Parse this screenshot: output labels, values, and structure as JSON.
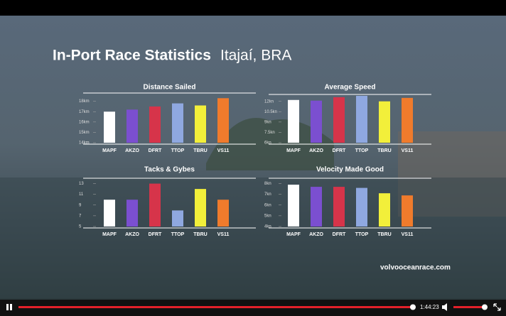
{
  "slide": {
    "title": "In-Port Race Statistics",
    "subtitle": "Itajaí, BRA",
    "logo": "volvooceanrace.com"
  },
  "player": {
    "time": "1:44:23"
  },
  "chart_data": [
    {
      "type": "bar",
      "title": "Distance Sailed",
      "categories": [
        "MAPF",
        "AKZO",
        "DFRT",
        "TTOP",
        "TBRU",
        "VS11"
      ],
      "values": [
        17.0,
        17.2,
        17.5,
        17.8,
        17.6,
        18.3
      ],
      "colors": [
        "#ffffff",
        "#7b4fd0",
        "#d6344a",
        "#8fa8e0",
        "#f2ef3a",
        "#f07b2c"
      ],
      "ylim": [
        14,
        18.8
      ],
      "yticks": [
        {
          "value": 14,
          "label": "14km"
        },
        {
          "value": 15,
          "label": "15km"
        },
        {
          "value": 16,
          "label": "16km"
        },
        {
          "value": 17,
          "label": "17km"
        },
        {
          "value": 18,
          "label": "18km"
        }
      ]
    },
    {
      "type": "bar",
      "title": "Average Speed",
      "categories": [
        "MAPF",
        "AKZO",
        "DFRT",
        "TTOP",
        "TBRU",
        "VS11"
      ],
      "values": [
        12.2,
        12.1,
        12.6,
        12.8,
        12.0,
        12.5
      ],
      "colors": [
        "#ffffff",
        "#7b4fd0",
        "#d6344a",
        "#8fa8e0",
        "#f2ef3a",
        "#f07b2c"
      ],
      "ylim": [
        6,
        13
      ],
      "yticks": [
        {
          "value": 6,
          "label": "6kn"
        },
        {
          "value": 7.5,
          "label": "7.5kn"
        },
        {
          "value": 9,
          "label": "9kn"
        },
        {
          "value": 10.5,
          "label": "10.5kn"
        },
        {
          "value": 12,
          "label": "12kn"
        }
      ]
    },
    {
      "type": "bar",
      "title": "Tacks & Gybes",
      "categories": [
        "MAPF",
        "AKZO",
        "DFRT",
        "TTOP",
        "TBRU",
        "VS11"
      ],
      "values": [
        10,
        10,
        13,
        8,
        12,
        10
      ],
      "colors": [
        "#ffffff",
        "#7b4fd0",
        "#d6344a",
        "#8fa8e0",
        "#f2ef3a",
        "#f07b2c"
      ],
      "ylim": [
        5,
        14
      ],
      "yticks": [
        5,
        7,
        9,
        11,
        13
      ]
    },
    {
      "type": "bar",
      "title": "Velocity Made Good",
      "categories": [
        "MAPF",
        "AKZO",
        "DFRT",
        "TTOP",
        "TBRU",
        "VS11"
      ],
      "values": [
        7.9,
        7.7,
        7.7,
        7.6,
        7.1,
        6.9
      ],
      "colors": [
        "#ffffff",
        "#7b4fd0",
        "#d6344a",
        "#8fa8e0",
        "#f2ef3a",
        "#f07b2c"
      ],
      "ylim": [
        4,
        8.5
      ],
      "yticks": [
        {
          "value": 4,
          "label": "4kn"
        },
        {
          "value": 5,
          "label": "5kn"
        },
        {
          "value": 6,
          "label": "6kn"
        },
        {
          "value": 7,
          "label": "7kn"
        },
        {
          "value": 8,
          "label": "8kn"
        }
      ]
    }
  ]
}
